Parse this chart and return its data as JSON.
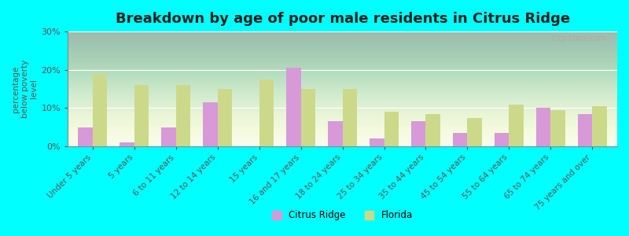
{
  "title": "Breakdown by age of poor male residents in Citrus Ridge",
  "categories": [
    "Under 5 years",
    "5 years",
    "6 to 11 years",
    "12 to 14 years",
    "15 years",
    "16 and 17 years",
    "18 to 24 years",
    "25 to 34 years",
    "35 to 44 years",
    "45 to 54 years",
    "55 to 64 years",
    "65 to 74 years",
    "75 years and over"
  ],
  "citrus_ridge": [
    5.0,
    1.0,
    5.0,
    11.5,
    0.0,
    20.5,
    6.5,
    2.0,
    6.5,
    3.5,
    3.5,
    10.0,
    8.5
  ],
  "florida": [
    19.0,
    16.0,
    16.0,
    15.0,
    17.5,
    15.0,
    15.0,
    9.0,
    8.5,
    7.5,
    11.0,
    9.5,
    10.5
  ],
  "citrus_ridge_color": "#d899d8",
  "florida_color": "#ccd98a",
  "background_color": "#00ffff",
  "plot_bg_bottom": "#f5faf5",
  "ylabel": "percentage\nbelow poverty\nlevel",
  "ylim": [
    0,
    30
  ],
  "yticks": [
    0,
    10,
    20,
    30
  ],
  "ytick_labels": [
    "0%",
    "10%",
    "20%",
    "30%"
  ],
  "title_fontsize": 13,
  "label_fontsize": 7.5,
  "tick_color": "#555555",
  "axis_color": "#888888",
  "watermark": "City-Data.com",
  "legend_citrus": "Citrus Ridge",
  "legend_florida": "Florida"
}
